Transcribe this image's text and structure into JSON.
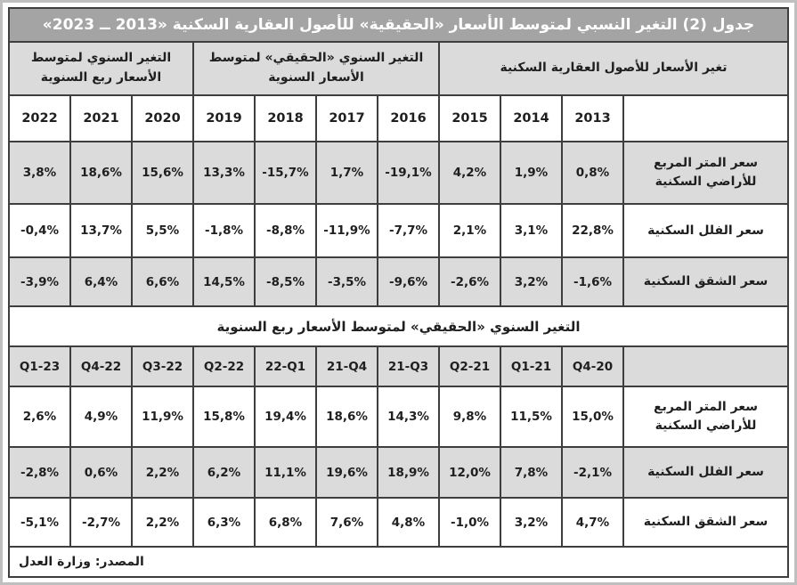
{
  "title": "جدول (2) التغير النسبي لمتوسط الأسعار «الحقيقية» للأصول العقارية السكنية «2013 ــ 2023»",
  "source": "المصدر: وزارة العدل",
  "colors": {
    "title_bar_bg": "#a4a4a4",
    "title_bar_text": "#ffffff",
    "shaded_cell_bg": "#dbdbdb",
    "border": "#3e3e3e",
    "text": "#1f1f1f"
  },
  "annual": {
    "groups": [
      {
        "label": "التغير السنوي لمتوسط الأسعار ربع السنوية",
        "span": 3
      },
      {
        "label": "التغير السنوي «الحقيقي» لمتوسط الأسعار السنوية",
        "span": 4
      },
      {
        "label": "تغير الأسعار للأصول العقارية السكنية",
        "span": 4
      }
    ],
    "columns": [
      "2022",
      "2021",
      "2020",
      "2019",
      "2018",
      "2017",
      "2016",
      "2015",
      "2014",
      "2013"
    ],
    "rows": [
      {
        "label": "سعر المتر المربع للأراضي السكنية",
        "shaded": true,
        "height": "h70",
        "values": [
          "3,8%",
          "18,6%",
          "15,6%",
          "13,3%",
          "-15,7%",
          "1,7%",
          "-19,1%",
          "4,2%",
          "1,9%",
          "0,8%"
        ]
      },
      {
        "label": "سعر الفلل السكنية",
        "shaded": false,
        "height": "h60",
        "values": [
          "-0,4%",
          "13,7%",
          "5,5%",
          "-1,8%",
          "-8,8%",
          "-11,9%",
          "-7,7%",
          "2,1%",
          "3,1%",
          "22,8%"
        ]
      },
      {
        "label": "سعر الشقق السكنية",
        "shaded": true,
        "height": "h55",
        "values": [
          "-3,9%",
          "6,4%",
          "6,6%",
          "14,5%",
          "-8,5%",
          "-3,5%",
          "-9,6%",
          "-2,6%",
          "3,2%",
          "-1,6%"
        ]
      }
    ]
  },
  "quarterly": {
    "section_title": "التغير السنوي «الحقيقي» لمتوسط الأسعار ربع السنوية",
    "columns": [
      "Q1-23",
      "Q4-22",
      "Q3-22",
      "Q2-22",
      "22-Q1",
      "21-Q4",
      "21-Q3",
      "Q2-21",
      "Q1-21",
      "Q4-20"
    ],
    "rows": [
      {
        "label": "سعر المتر المربع للأراضي السكنية",
        "shaded": false,
        "height": "h68",
        "values": [
          "2,6%",
          "4,9%",
          "11,9%",
          "15,8%",
          "19,4%",
          "18,6%",
          "14,3%",
          "9,8%",
          "11,5%",
          "15,0%"
        ]
      },
      {
        "label": "سعر الفلل السكنية",
        "shaded": true,
        "height": "h57",
        "values": [
          "-2,8%",
          "0,6%",
          "2,2%",
          "6,2%",
          "11,1%",
          "19,6%",
          "18,9%",
          "12,0%",
          "7,8%",
          "-2,1%"
        ]
      },
      {
        "label": "سعر الشقق السكنية",
        "shaded": false,
        "height": "h55",
        "values": [
          "-5,1%",
          "-2,7%",
          "2,2%",
          "6,3%",
          "6,8%",
          "7,6%",
          "4,8%",
          "-1,0%",
          "3,2%",
          "4,7%"
        ]
      }
    ]
  }
}
